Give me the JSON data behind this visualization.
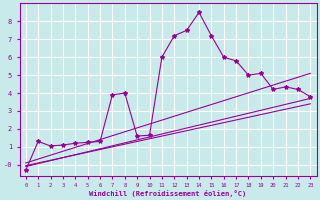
{
  "bg_color": "#c8eaea",
  "grid_color": "#aad4d4",
  "line_color": "#990099",
  "xlabel": "Windchill (Refroidissement éolien,°C)",
  "xlim": [
    -0.5,
    23.5
  ],
  "ylim": [
    -0.6,
    9.0
  ],
  "xticks": [
    0,
    1,
    2,
    3,
    4,
    5,
    6,
    7,
    8,
    9,
    10,
    11,
    12,
    13,
    14,
    15,
    16,
    17,
    18,
    19,
    20,
    21,
    22,
    23
  ],
  "yticks": [
    0,
    1,
    2,
    3,
    4,
    5,
    6,
    7,
    8
  ],
  "ytick_labels": [
    "-0",
    "1",
    "2",
    "3",
    "4",
    "5",
    "6",
    "7",
    "8"
  ],
  "scatter_x": [
    0,
    1,
    2,
    3,
    4,
    5,
    6,
    7,
    8,
    9,
    10,
    11,
    12,
    13,
    14,
    15,
    16,
    17,
    18,
    19,
    20,
    21,
    22,
    23
  ],
  "scatter_y": [
    -0.3,
    1.3,
    1.05,
    1.1,
    1.2,
    1.25,
    1.3,
    3.9,
    4.0,
    1.6,
    1.65,
    6.0,
    7.2,
    7.5,
    8.5,
    7.2,
    6.0,
    5.8,
    5.0,
    5.1,
    4.2,
    4.35,
    4.2,
    3.8
  ],
  "line1_x": [
    0,
    23
  ],
  "line1_y": [
    -0.1,
    3.7
  ],
  "line2_x": [
    0,
    23
  ],
  "line2_y": [
    0.1,
    5.1
  ],
  "line3_x": [
    0,
    23
  ],
  "line3_y": [
    -0.05,
    3.4
  ],
  "figsize": [
    3.2,
    2.0
  ],
  "dpi": 100
}
